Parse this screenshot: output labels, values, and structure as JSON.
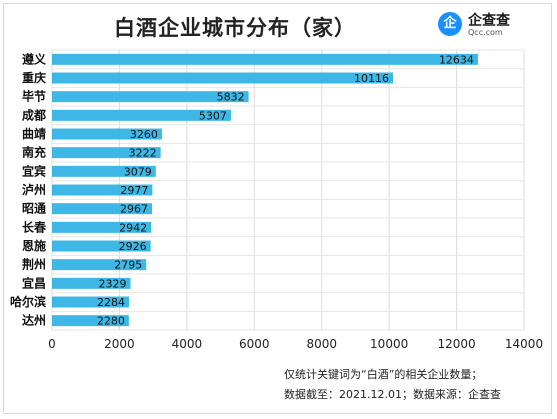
{
  "title": "白酒企业城市分布（家）",
  "logo": {
    "mark": "企",
    "name": "企查查",
    "url": "Qcc.com",
    "color": "#1890ff"
  },
  "notes": [
    "仅统计关键词为“白酒”的相关企业数量；",
    "数据截至：2021.12.01；数据来源：企查查"
  ],
  "chart_data": {
    "type": "bar",
    "orientation": "horizontal",
    "categories": [
      "遵义",
      "重庆",
      "毕节",
      "成都",
      "曲靖",
      "南充",
      "宜宾",
      "泸州",
      "昭通",
      "长春",
      "恩施",
      "荆州",
      "宜昌",
      "哈尔滨",
      "达州"
    ],
    "values": [
      12634,
      10116,
      5832,
      5307,
      3260,
      3222,
      3079,
      2977,
      2967,
      2942,
      2926,
      2795,
      2329,
      2284,
      2280
    ],
    "xlim": [
      0,
      14000
    ],
    "xticks": [
      0,
      2000,
      4000,
      6000,
      8000,
      10000,
      12000,
      14000
    ],
    "data_labels": true,
    "grid": true,
    "bar_color": "#3db8e6"
  }
}
